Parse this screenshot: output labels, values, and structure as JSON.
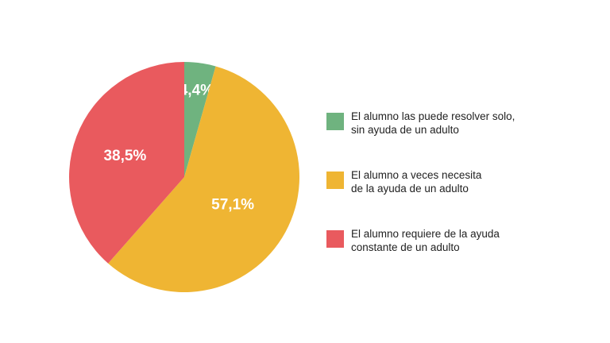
{
  "chart_data": {
    "type": "pie",
    "slices": [
      {
        "label": "El alumno las puede resolver solo, sin ayuda de un adulto",
        "value": 4.4,
        "value_label": "4,4%",
        "color": "#6fb37f"
      },
      {
        "label": "El alumno a veces necesita de la ayuda de un adulto",
        "value": 57.1,
        "value_label": "57,1%",
        "color": "#efb533"
      },
      {
        "label": "El alumno requiere de la ayuda constante de un adulto",
        "value": 38.5,
        "value_label": "38,5%",
        "color": "#e95a5e"
      }
    ],
    "legend_position": "right"
  },
  "legend": {
    "items": [
      {
        "line1": "El alumno las puede resolver solo,",
        "line2": "sin ayuda de un adulto",
        "color": "#6fb37f"
      },
      {
        "line1": "El alumno a veces necesita",
        "line2": "de la ayuda de un adulto",
        "color": "#efb533"
      },
      {
        "line1": "El alumno requiere de la ayuda",
        "line2": "constante de un adulto",
        "color": "#e95a5e"
      }
    ]
  }
}
